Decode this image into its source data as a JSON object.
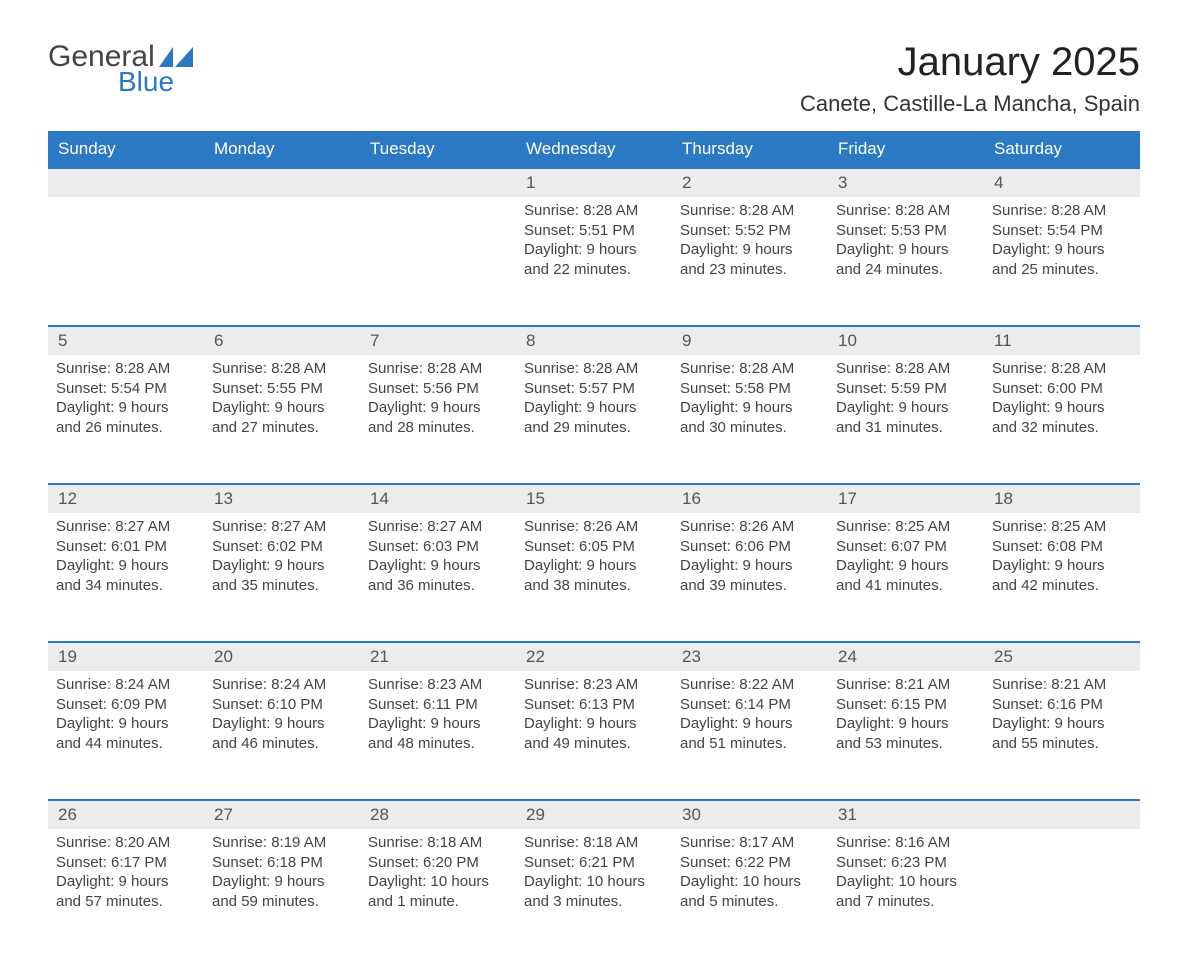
{
  "logo": {
    "word1": "General",
    "word2": "Blue",
    "color_word2": "#2b79c2",
    "color_word1": "#444444",
    "flag_color": "#2b79c2"
  },
  "title": "January 2025",
  "subtitle": "Canete, Castille-La Mancha, Spain",
  "header_bg": "#2b79c2",
  "header_text": "#ffffff",
  "row_accent": "#2b79c2",
  "daynum_bg": "#ececec",
  "background": "#ffffff",
  "day_names": [
    "Sunday",
    "Monday",
    "Tuesday",
    "Wednesday",
    "Thursday",
    "Friday",
    "Saturday"
  ],
  "weeks": [
    [
      {
        "n": "",
        "sunrise": "",
        "sunset": "",
        "daylight1": "",
        "daylight2": ""
      },
      {
        "n": "",
        "sunrise": "",
        "sunset": "",
        "daylight1": "",
        "daylight2": ""
      },
      {
        "n": "",
        "sunrise": "",
        "sunset": "",
        "daylight1": "",
        "daylight2": ""
      },
      {
        "n": "1",
        "sunrise": "Sunrise: 8:28 AM",
        "sunset": "Sunset: 5:51 PM",
        "daylight1": "Daylight: 9 hours",
        "daylight2": "and 22 minutes."
      },
      {
        "n": "2",
        "sunrise": "Sunrise: 8:28 AM",
        "sunset": "Sunset: 5:52 PM",
        "daylight1": "Daylight: 9 hours",
        "daylight2": "and 23 minutes."
      },
      {
        "n": "3",
        "sunrise": "Sunrise: 8:28 AM",
        "sunset": "Sunset: 5:53 PM",
        "daylight1": "Daylight: 9 hours",
        "daylight2": "and 24 minutes."
      },
      {
        "n": "4",
        "sunrise": "Sunrise: 8:28 AM",
        "sunset": "Sunset: 5:54 PM",
        "daylight1": "Daylight: 9 hours",
        "daylight2": "and 25 minutes."
      }
    ],
    [
      {
        "n": "5",
        "sunrise": "Sunrise: 8:28 AM",
        "sunset": "Sunset: 5:54 PM",
        "daylight1": "Daylight: 9 hours",
        "daylight2": "and 26 minutes."
      },
      {
        "n": "6",
        "sunrise": "Sunrise: 8:28 AM",
        "sunset": "Sunset: 5:55 PM",
        "daylight1": "Daylight: 9 hours",
        "daylight2": "and 27 minutes."
      },
      {
        "n": "7",
        "sunrise": "Sunrise: 8:28 AM",
        "sunset": "Sunset: 5:56 PM",
        "daylight1": "Daylight: 9 hours",
        "daylight2": "and 28 minutes."
      },
      {
        "n": "8",
        "sunrise": "Sunrise: 8:28 AM",
        "sunset": "Sunset: 5:57 PM",
        "daylight1": "Daylight: 9 hours",
        "daylight2": "and 29 minutes."
      },
      {
        "n": "9",
        "sunrise": "Sunrise: 8:28 AM",
        "sunset": "Sunset: 5:58 PM",
        "daylight1": "Daylight: 9 hours",
        "daylight2": "and 30 minutes."
      },
      {
        "n": "10",
        "sunrise": "Sunrise: 8:28 AM",
        "sunset": "Sunset: 5:59 PM",
        "daylight1": "Daylight: 9 hours",
        "daylight2": "and 31 minutes."
      },
      {
        "n": "11",
        "sunrise": "Sunrise: 8:28 AM",
        "sunset": "Sunset: 6:00 PM",
        "daylight1": "Daylight: 9 hours",
        "daylight2": "and 32 minutes."
      }
    ],
    [
      {
        "n": "12",
        "sunrise": "Sunrise: 8:27 AM",
        "sunset": "Sunset: 6:01 PM",
        "daylight1": "Daylight: 9 hours",
        "daylight2": "and 34 minutes."
      },
      {
        "n": "13",
        "sunrise": "Sunrise: 8:27 AM",
        "sunset": "Sunset: 6:02 PM",
        "daylight1": "Daylight: 9 hours",
        "daylight2": "and 35 minutes."
      },
      {
        "n": "14",
        "sunrise": "Sunrise: 8:27 AM",
        "sunset": "Sunset: 6:03 PM",
        "daylight1": "Daylight: 9 hours",
        "daylight2": "and 36 minutes."
      },
      {
        "n": "15",
        "sunrise": "Sunrise: 8:26 AM",
        "sunset": "Sunset: 6:05 PM",
        "daylight1": "Daylight: 9 hours",
        "daylight2": "and 38 minutes."
      },
      {
        "n": "16",
        "sunrise": "Sunrise: 8:26 AM",
        "sunset": "Sunset: 6:06 PM",
        "daylight1": "Daylight: 9 hours",
        "daylight2": "and 39 minutes."
      },
      {
        "n": "17",
        "sunrise": "Sunrise: 8:25 AM",
        "sunset": "Sunset: 6:07 PM",
        "daylight1": "Daylight: 9 hours",
        "daylight2": "and 41 minutes."
      },
      {
        "n": "18",
        "sunrise": "Sunrise: 8:25 AM",
        "sunset": "Sunset: 6:08 PM",
        "daylight1": "Daylight: 9 hours",
        "daylight2": "and 42 minutes."
      }
    ],
    [
      {
        "n": "19",
        "sunrise": "Sunrise: 8:24 AM",
        "sunset": "Sunset: 6:09 PM",
        "daylight1": "Daylight: 9 hours",
        "daylight2": "and 44 minutes."
      },
      {
        "n": "20",
        "sunrise": "Sunrise: 8:24 AM",
        "sunset": "Sunset: 6:10 PM",
        "daylight1": "Daylight: 9 hours",
        "daylight2": "and 46 minutes."
      },
      {
        "n": "21",
        "sunrise": "Sunrise: 8:23 AM",
        "sunset": "Sunset: 6:11 PM",
        "daylight1": "Daylight: 9 hours",
        "daylight2": "and 48 minutes."
      },
      {
        "n": "22",
        "sunrise": "Sunrise: 8:23 AM",
        "sunset": "Sunset: 6:13 PM",
        "daylight1": "Daylight: 9 hours",
        "daylight2": "and 49 minutes."
      },
      {
        "n": "23",
        "sunrise": "Sunrise: 8:22 AM",
        "sunset": "Sunset: 6:14 PM",
        "daylight1": "Daylight: 9 hours",
        "daylight2": "and 51 minutes."
      },
      {
        "n": "24",
        "sunrise": "Sunrise: 8:21 AM",
        "sunset": "Sunset: 6:15 PM",
        "daylight1": "Daylight: 9 hours",
        "daylight2": "and 53 minutes."
      },
      {
        "n": "25",
        "sunrise": "Sunrise: 8:21 AM",
        "sunset": "Sunset: 6:16 PM",
        "daylight1": "Daylight: 9 hours",
        "daylight2": "and 55 minutes."
      }
    ],
    [
      {
        "n": "26",
        "sunrise": "Sunrise: 8:20 AM",
        "sunset": "Sunset: 6:17 PM",
        "daylight1": "Daylight: 9 hours",
        "daylight2": "and 57 minutes."
      },
      {
        "n": "27",
        "sunrise": "Sunrise: 8:19 AM",
        "sunset": "Sunset: 6:18 PM",
        "daylight1": "Daylight: 9 hours",
        "daylight2": "and 59 minutes."
      },
      {
        "n": "28",
        "sunrise": "Sunrise: 8:18 AM",
        "sunset": "Sunset: 6:20 PM",
        "daylight1": "Daylight: 10 hours",
        "daylight2": "and 1 minute."
      },
      {
        "n": "29",
        "sunrise": "Sunrise: 8:18 AM",
        "sunset": "Sunset: 6:21 PM",
        "daylight1": "Daylight: 10 hours",
        "daylight2": "and 3 minutes."
      },
      {
        "n": "30",
        "sunrise": "Sunrise: 8:17 AM",
        "sunset": "Sunset: 6:22 PM",
        "daylight1": "Daylight: 10 hours",
        "daylight2": "and 5 minutes."
      },
      {
        "n": "31",
        "sunrise": "Sunrise: 8:16 AM",
        "sunset": "Sunset: 6:23 PM",
        "daylight1": "Daylight: 10 hours",
        "daylight2": "and 7 minutes."
      },
      {
        "n": "",
        "sunrise": "",
        "sunset": "",
        "daylight1": "",
        "daylight2": ""
      }
    ]
  ]
}
